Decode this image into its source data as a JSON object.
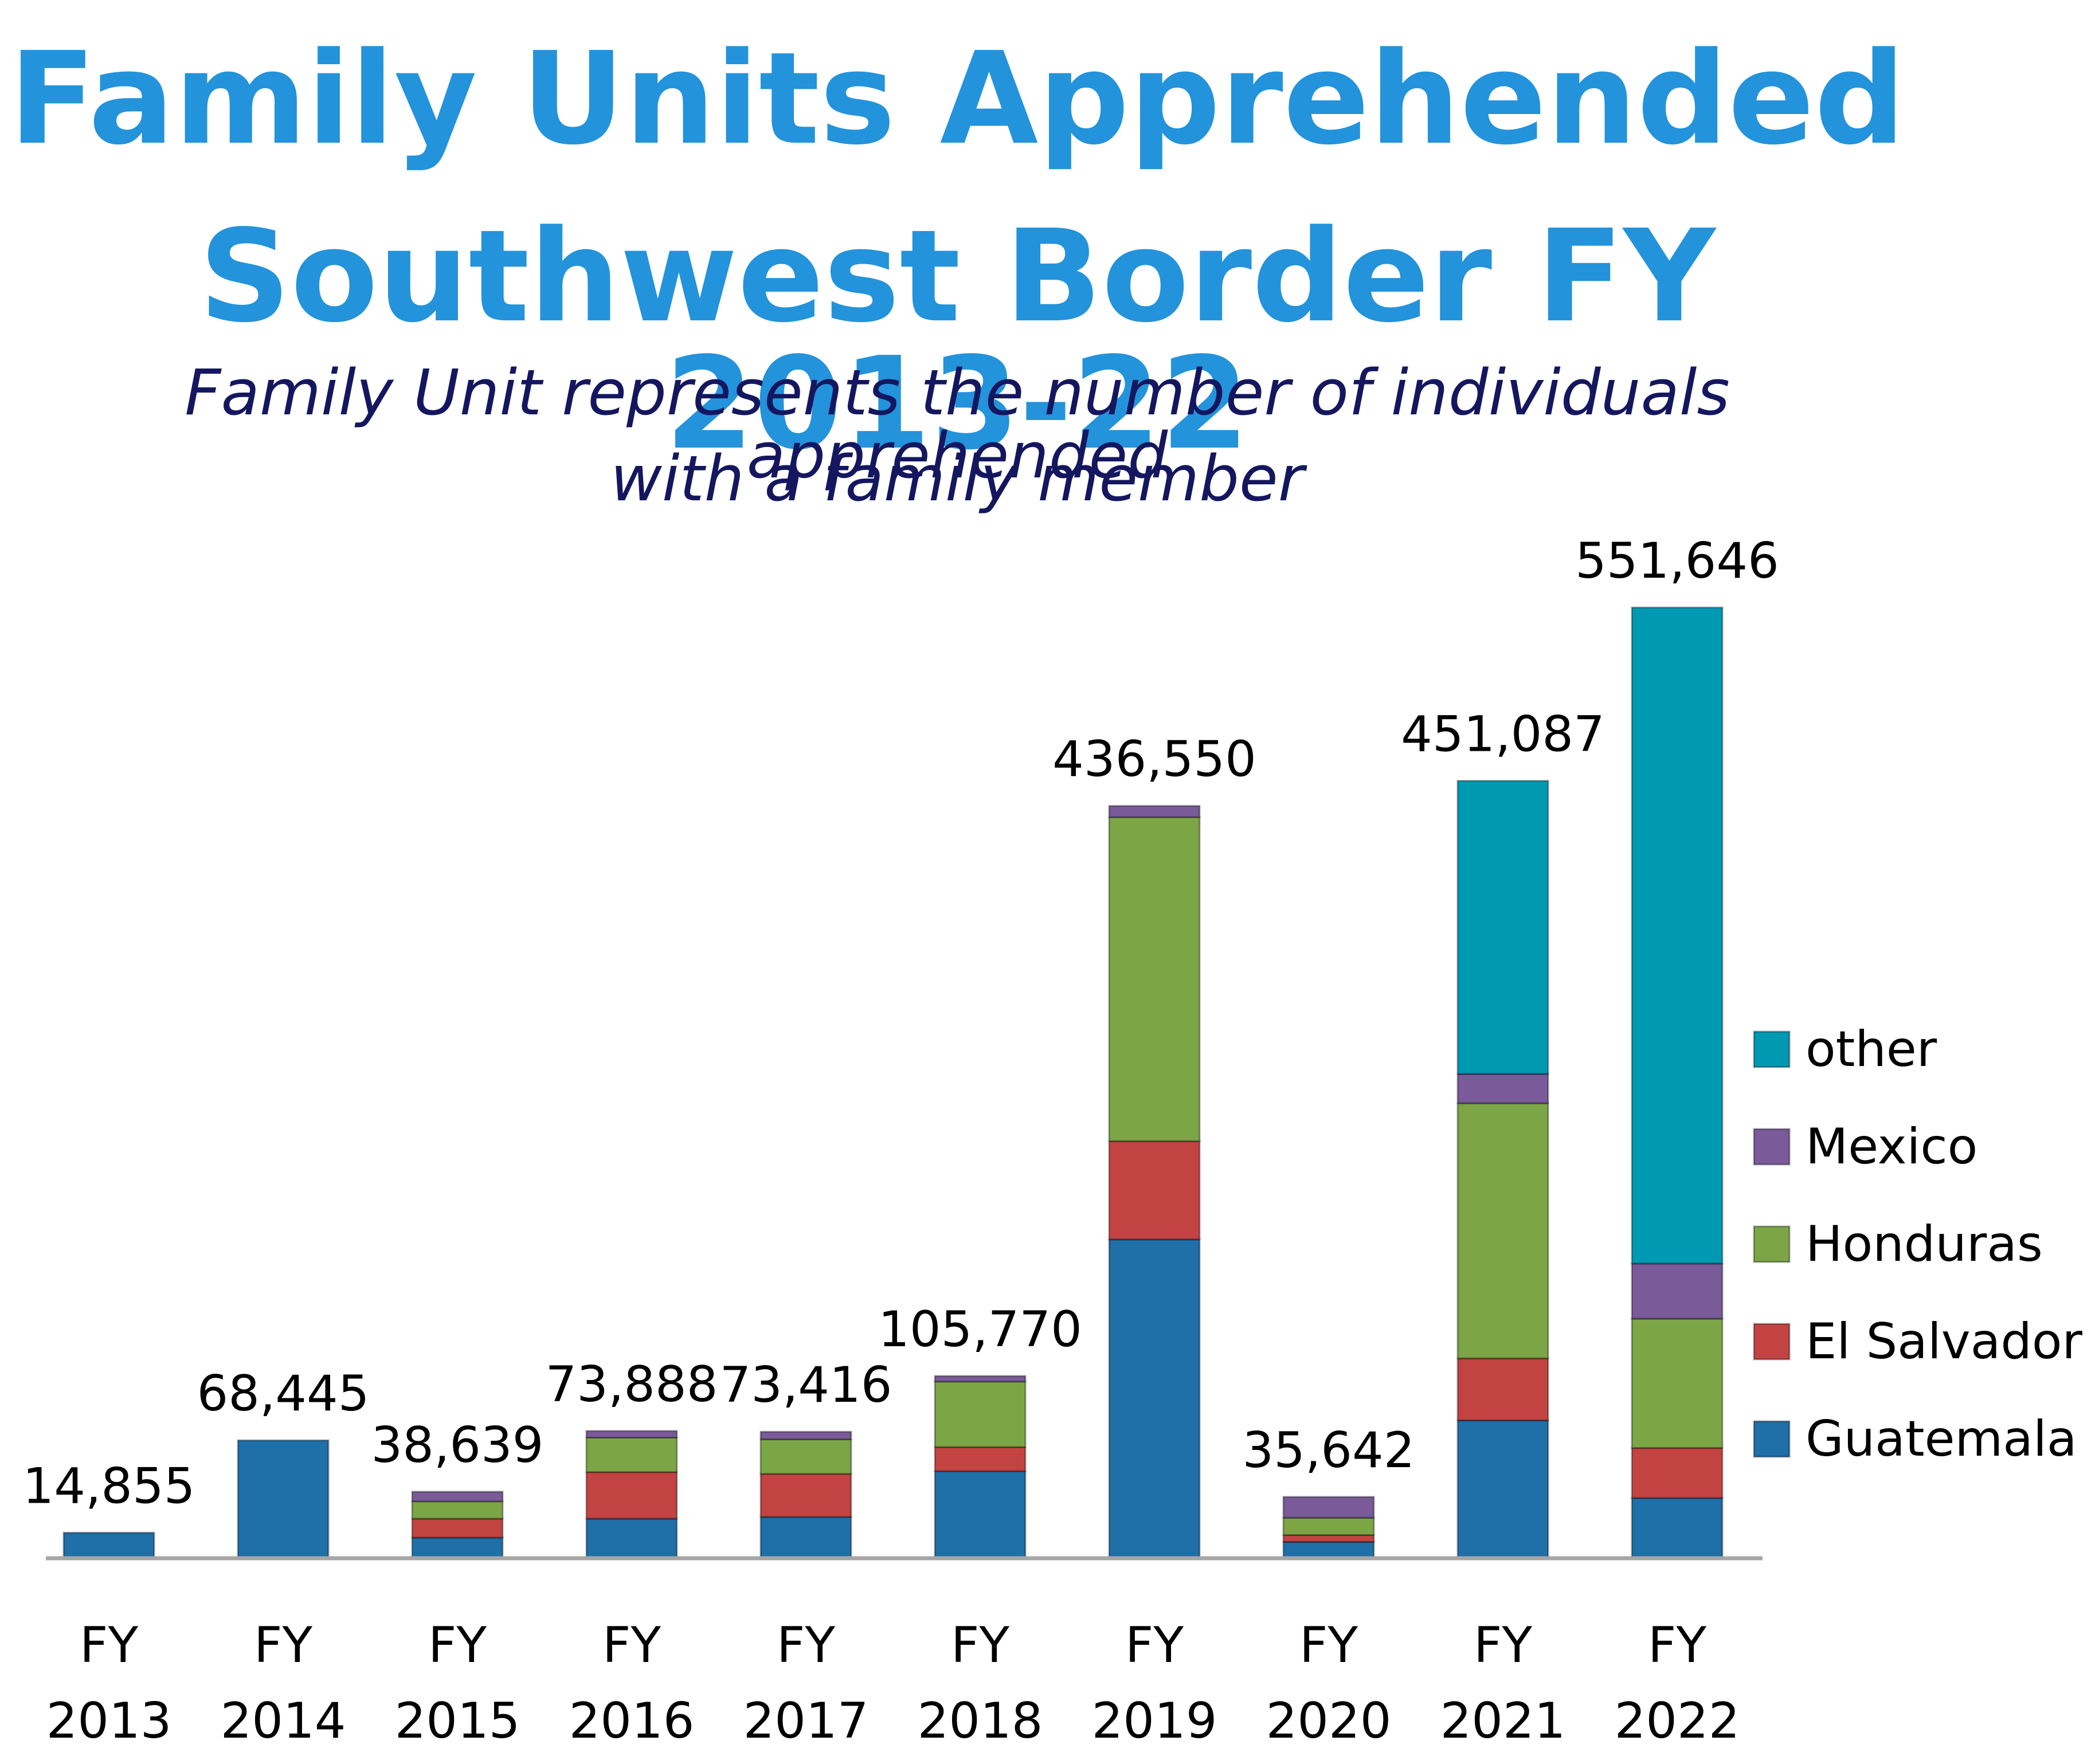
{
  "title_lines": [
    "Family Units Apprehended",
    "Southwest Border FY 2013-22"
  ],
  "subtitle_lines": [
    "Family Unit represents the number of individuals apprehended",
    "with a family member"
  ],
  "colors": {
    "title": "#2393db",
    "subtitle": "#14175f",
    "Guatemala": "#1f6fa8",
    "El Salvador": "#c34343",
    "Honduras": "#7ca646",
    "Mexico": "#7a5a99",
    "other": "#0099b2",
    "axis": "#a6a6a6"
  },
  "chart_data": {
    "type": "bar",
    "stacked": true,
    "title": "Family Units Apprehended Southwest Border FY 2013-22",
    "subtitle": "Family Unit represents the number of individuals apprehended with a family member",
    "categories": [
      [
        "FY",
        "2013"
      ],
      [
        "FY",
        "2014"
      ],
      [
        "FY",
        "2015"
      ],
      [
        "FY",
        "2016"
      ],
      [
        "FY",
        "2017"
      ],
      [
        "FY",
        "2018"
      ],
      [
        "FY",
        "2019"
      ],
      [
        "FY",
        "2020"
      ],
      [
        "FY",
        "2021"
      ],
      [
        "FY",
        "2022"
      ]
    ],
    "series": [
      {
        "name": "Guatemala",
        "values": [
          14855,
          68445,
          12000,
          23000,
          24000,
          50500,
          185000,
          9500,
          80000,
          35000
        ]
      },
      {
        "name": "El Salvador",
        "values": [
          0,
          0,
          11000,
          27000,
          25000,
          14000,
          57000,
          4000,
          36000,
          29000
        ]
      },
      {
        "name": "Honduras",
        "values": [
          0,
          0,
          10000,
          20000,
          20000,
          38000,
          188000,
          10000,
          148000,
          75000
        ]
      },
      {
        "name": "Mexico",
        "values": [
          0,
          0,
          5639,
          3888,
          4416,
          3270,
          6550,
          12142,
          17000,
          32000
        ]
      },
      {
        "name": "other",
        "values": [
          0,
          0,
          0,
          0,
          0,
          0,
          0,
          0,
          170087,
          380646
        ]
      }
    ],
    "totals": [
      "14,855",
      "68,445",
      "38,639",
      "73,888",
      "73,416",
      "105,770",
      "436,550",
      "35,642",
      "451,087",
      "551,646"
    ],
    "legend": [
      "other",
      "Mexico",
      "Honduras",
      "El Salvador",
      "Guatemala"
    ],
    "legend_position": "right",
    "ylim": [
      0,
      551646
    ],
    "gridlines": false,
    "xlabel": "",
    "ylabel": ""
  }
}
